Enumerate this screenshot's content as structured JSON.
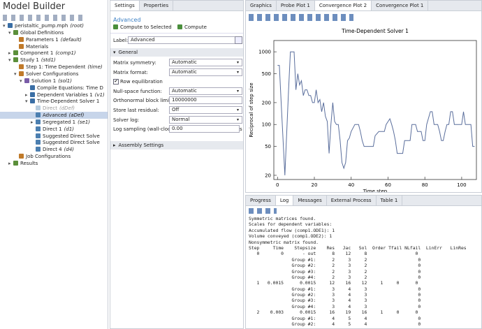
{
  "model_builder": {
    "title": "Model Builder",
    "tree": [
      {
        "label": "peristaltic_pump.mph",
        "tag": "(root)",
        "children": [
          {
            "label": "Global Definitions",
            "children": [
              {
                "label": "Parameters 1",
                "tag": "(default)"
              },
              {
                "label": "Materials"
              }
            ]
          },
          {
            "label": "Component 1",
            "tag": "(comp1)",
            "collapsed": true
          },
          {
            "label": "Study 1",
            "tag": "(std1)",
            "children": [
              {
                "label": "Step 1: Time Dependent",
                "tag": "(time)"
              },
              {
                "label": "Solver Configurations",
                "children": [
                  {
                    "label": "Solution 1",
                    "tag": "(sol1)",
                    "children": [
                      {
                        "label": "Compile Equations: Time D"
                      },
                      {
                        "label": "Dependent Variables 1",
                        "tag": "(v1)",
                        "collapsed": true
                      },
                      {
                        "label": "Time-Dependent Solver 1",
                        "children": [
                          {
                            "label": "Direct",
                            "tag": "(dDef)",
                            "disabled": true
                          },
                          {
                            "label": "Advanced",
                            "tag": "(aDef)",
                            "selected": true
                          },
                          {
                            "label": "Segregated 1",
                            "tag": "(se1)",
                            "collapsed": true
                          },
                          {
                            "label": "Direct 1",
                            "tag": "(d1)"
                          },
                          {
                            "label": "Suggested Direct Solve"
                          },
                          {
                            "label": "Suggested Direct Solve"
                          },
                          {
                            "label": "Direct 4",
                            "tag": "(d4)"
                          }
                        ]
                      }
                    ]
                  }
                ]
              },
              {
                "label": "Job Configurations"
              }
            ]
          },
          {
            "label": "Results",
            "collapsed": true
          }
        ]
      }
    ]
  },
  "settings": {
    "tabs": [
      "Settings",
      "Properties"
    ],
    "heading": "Advanced",
    "toolbar": [
      "Compute to Selected",
      "Compute"
    ],
    "label_field": {
      "label": "Label:",
      "value": "Advanced"
    },
    "section": "General",
    "fields": [
      {
        "label": "Matrix symmetry:",
        "value": "Automatic",
        "control": "select"
      },
      {
        "label": "Matrix format:",
        "value": "Automatic",
        "control": "select"
      },
      {
        "label": "Row equilibration",
        "checked": true,
        "control": "checkbox"
      },
      {
        "label": "Null-space function:",
        "value": "Automatic",
        "control": "select"
      },
      {
        "label": "Orthonormal block limit:",
        "value": "10000000",
        "control": "text"
      },
      {
        "label": "Store last residual:",
        "value": "Off",
        "control": "select"
      },
      {
        "label": "Solver log:",
        "value": "Normal",
        "control": "select"
      },
      {
        "label": "Log sampling (wall-clock):",
        "value": "0.00",
        "unit": "s",
        "control": "text"
      }
    ],
    "collapsed_section": "Assembly Settings"
  },
  "graphics_tabs": [
    "Graphics",
    "Probe Plot 1",
    "Convergence Plot 2",
    "Convergence Plot 1"
  ],
  "chart_data": {
    "type": "line",
    "title": "Time-Dependent Solver 1",
    "x_label": "Time step",
    "y_label": "Reciprocal of step size",
    "color": "#5a6e9c",
    "x": [
      0,
      1,
      2,
      4,
      6,
      7,
      8,
      9,
      10,
      11,
      12,
      13,
      14,
      15,
      16,
      17,
      18,
      19,
      20,
      21,
      22,
      23,
      24,
      25,
      26,
      27,
      28,
      29,
      30,
      31,
      32,
      33,
      34,
      35,
      36,
      37,
      38,
      39,
      40,
      42,
      44,
      45,
      46,
      47,
      52,
      53,
      55,
      58,
      59,
      61,
      62,
      63,
      64,
      65,
      66,
      68,
      69,
      72,
      73,
      75,
      76,
      78,
      79,
      80,
      81,
      83,
      84,
      85,
      87,
      88,
      89,
      90,
      91,
      92,
      93,
      94,
      95,
      96,
      100,
      101,
      102,
      105,
      106,
      107
    ],
    "values": [
      650,
      650,
      200,
      20,
      300,
      1000,
      1000,
      1000,
      300,
      500,
      350,
      400,
      250,
      300,
      300,
      250,
      250,
      200,
      200,
      300,
      200,
      220,
      150,
      200,
      130,
      110,
      40,
      100,
      200,
      110,
      100,
      100,
      60,
      30,
      25,
      30,
      60,
      65,
      80,
      100,
      100,
      80,
      60,
      50,
      50,
      70,
      80,
      80,
      100,
      120,
      100,
      80,
      60,
      40,
      40,
      40,
      60,
      60,
      100,
      100,
      80,
      80,
      60,
      60,
      100,
      150,
      150,
      100,
      100,
      80,
      60,
      60,
      80,
      100,
      100,
      150,
      150,
      100,
      100,
      150,
      100,
      100,
      50,
      50
    ],
    "xlim": [
      -2,
      108
    ],
    "xticks": [
      0,
      20,
      40,
      60,
      80,
      100
    ],
    "ylim": [
      17.5,
      1430
    ],
    "yticks": [
      20,
      50,
      100,
      200,
      500,
      1000
    ],
    "yscale": "log",
    "grid": false
  },
  "log_panel": {
    "tabs": [
      "Progress",
      "Log",
      "Messages",
      "External Process",
      "Table 1"
    ],
    "active_tab": 1,
    "lines": [
      "Symmetric matrices found.",
      "Scales for dependent variables:",
      "Accumulated flow (comp1.ODE1): 1",
      "Volume conveyed (comp1.ODE2): 1",
      "Nonsymmetric matrix found.",
      "Step     Time    Stepsize    Res   Jac   Sol  Order Tfail NLfail  LinErr   LinRes",
      "   0        0       - out      8    12     8                  0",
      "                Group #1:      2     3     2                   0",
      "                Group #2:      2     3     2                   0",
      "                Group #3:      2     3     2                   0",
      "                Group #4:      2     3     2                   0",
      "   1   0.0015      0.0015     12    16    12     1     0      0",
      "                Group #1:      3     4     3                   0",
      "                Group #2:      3     4     3                   0",
      "                Group #3:      3     4     3                   0",
      "                Group #4:      3     4     3                   0",
      "   2    0.003      0.0015     16    19    16     1     0      0",
      "                Group #1:      4     5     4                   0",
      "                Group #2:      4     5     4                   0"
    ]
  }
}
